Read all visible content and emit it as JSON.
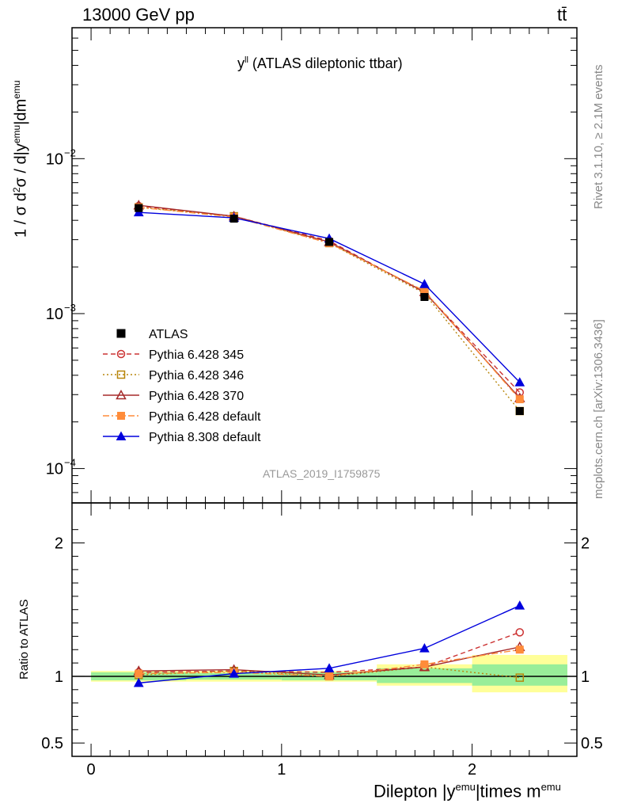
{
  "header": {
    "energy_label": "13000 GeV pp",
    "process_label": "tt̄"
  },
  "side_text": {
    "rivet": "Rivet 3.1.10, ≥ 2.1M events",
    "mcplots": "mcplots.cern.ch [arXiv:1306.3436]"
  },
  "analysis_id": "ATLAS_2019_I1759875",
  "chart_data": [
    {
      "type": "line",
      "panel": "main",
      "title": {
        "main": "y",
        "sup": "ll",
        "rest": "(ATLAS dileptonic ttbar)"
      },
      "ylabel": {
        "a": "1 / σ d",
        "b": "2",
        "c": "σ / d|y",
        "d": "emu",
        "e": "|dm",
        "f": "emu"
      },
      "yscale": "log",
      "ylim": [
        6e-05,
        0.07
      ],
      "xlim": [
        -0.1,
        2.55
      ],
      "y_ticks": [
        {
          "value": 0.0001,
          "label": "10",
          "exp": "−4"
        },
        {
          "value": 0.001,
          "label": "10",
          "exp": "−3"
        },
        {
          "value": 0.01,
          "label": "10",
          "exp": "−2"
        }
      ],
      "x": [
        0.25,
        0.75,
        1.25,
        1.75,
        2.25
      ],
      "data": {
        "name": "ATLAS",
        "values": [
          0.0048,
          0.0041,
          0.0029,
          0.00128,
          0.000235
        ]
      },
      "series": [
        {
          "name": "Pythia 6.428 345",
          "color": "#cc3333",
          "dash": "6,4",
          "marker": "circle-open",
          "values": [
            0.00495,
            0.00425,
            0.00295,
            0.00137,
            0.00031
          ]
        },
        {
          "name": "Pythia 6.428 346",
          "color": "#b8860b",
          "dash": "2,3",
          "marker": "square-open",
          "values": [
            0.00485,
            0.00425,
            0.00285,
            0.00135,
            0.000235
          ]
        },
        {
          "name": "Pythia 6.428 370",
          "color": "#a52a2a",
          "dash": "",
          "marker": "triangle-open",
          "values": [
            0.005,
            0.00425,
            0.0029,
            0.00138,
            0.000285
          ]
        },
        {
          "name": "Pythia 6.428 default",
          "color": "#ff8c3a",
          "dash": "8,3,2,3",
          "marker": "square-filled",
          "values": [
            0.00485,
            0.0042,
            0.00285,
            0.0014,
            0.00028
          ]
        },
        {
          "name": "Pythia 8.308 default",
          "color": "#0000dd",
          "dash": "",
          "marker": "triangle-filled",
          "values": [
            0.0045,
            0.00415,
            0.00305,
            0.00155,
            0.00036
          ]
        }
      ],
      "legend_position": "center-left"
    },
    {
      "type": "line",
      "panel": "ratio",
      "ylabel": "Ratio to ATLAS",
      "ylim": [
        0.4,
        2.3
      ],
      "y_ticks": [
        0.5,
        1,
        2
      ],
      "x_ticks": [
        0,
        1,
        2
      ],
      "xlabel": {
        "a": "Dilepton |y",
        "b": "emu",
        "c": "|times m",
        "d": "emu"
      },
      "x": [
        0.25,
        0.75,
        1.25,
        1.75,
        2.25
      ],
      "bins": [
        [
          0.0,
          0.5
        ],
        [
          0.5,
          1.0
        ],
        [
          1.0,
          1.5
        ],
        [
          1.5,
          2.0
        ],
        [
          2.0,
          2.5
        ]
      ],
      "band_inner": [
        [
          0.97,
          1.03
        ],
        [
          0.975,
          1.025
        ],
        [
          0.97,
          1.03
        ],
        [
          0.95,
          1.06
        ],
        [
          0.93,
          1.09
        ]
      ],
      "band_outer": [
        [
          0.96,
          1.04
        ],
        [
          0.96,
          1.04
        ],
        [
          0.96,
          1.04
        ],
        [
          0.93,
          1.09
        ],
        [
          0.88,
          1.16
        ]
      ],
      "series": [
        {
          "name": "Pythia 6.428 345",
          "values": [
            1.03,
            1.04,
            1.03,
            1.07,
            1.33
          ]
        },
        {
          "name": "Pythia 6.428 346",
          "values": [
            1.01,
            1.04,
            1.0,
            1.07,
            0.99
          ]
        },
        {
          "name": "Pythia 6.428 370",
          "values": [
            1.04,
            1.05,
            1.01,
            1.07,
            1.22
          ]
        },
        {
          "name": "Pythia 6.428 default",
          "values": [
            1.02,
            1.03,
            1.0,
            1.09,
            1.2
          ]
        },
        {
          "name": "Pythia 8.308 default",
          "values": [
            0.95,
            1.02,
            1.06,
            1.21,
            1.53
          ]
        }
      ]
    }
  ]
}
